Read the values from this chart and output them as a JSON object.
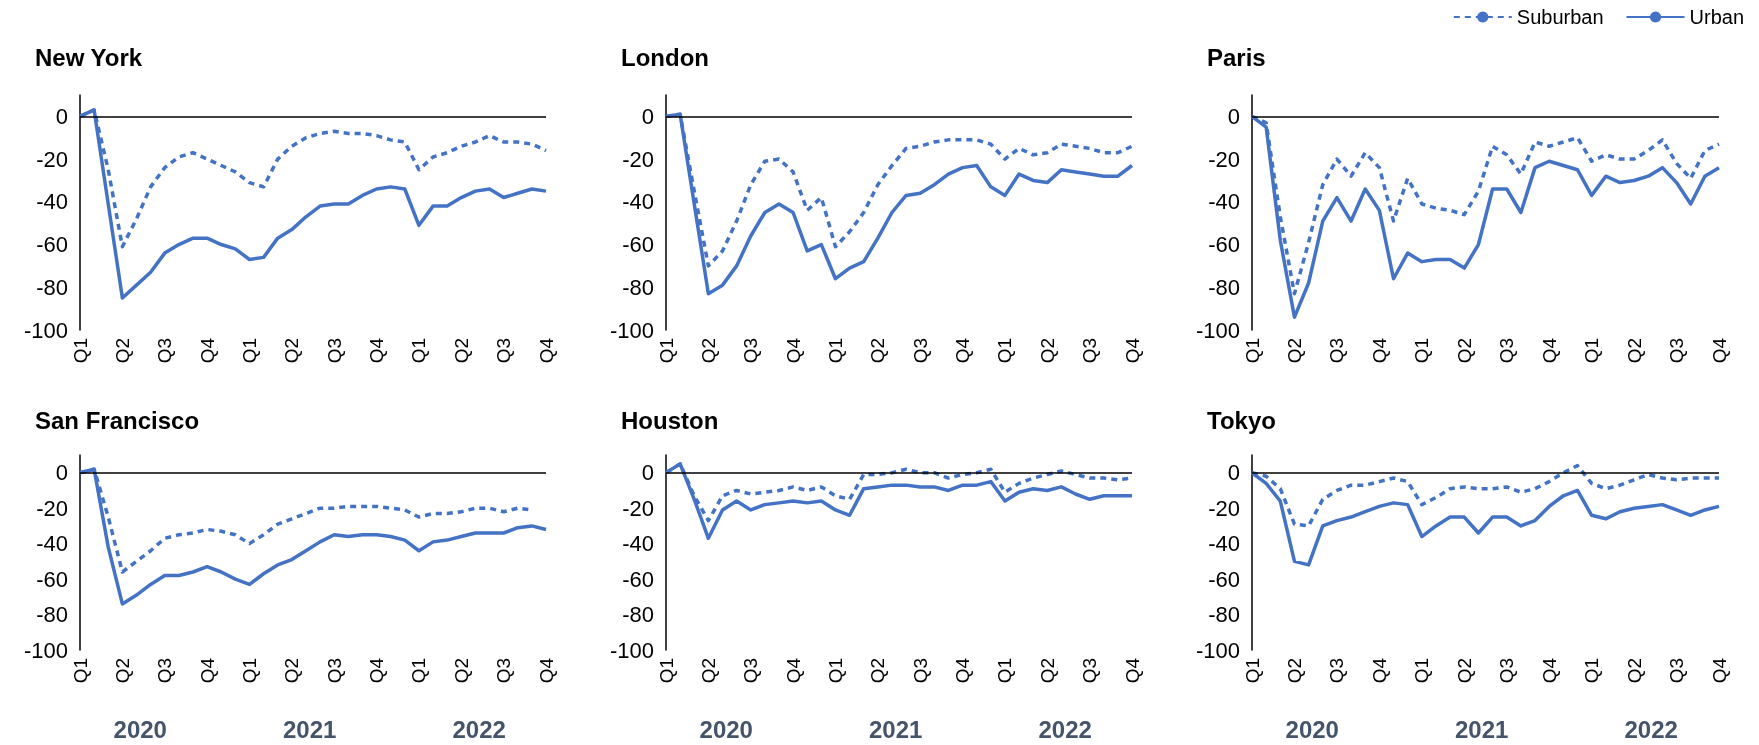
{
  "chart_data": [
    {
      "type": "line",
      "title": "New York",
      "ref_lines": [
        {
          "axis": "y",
          "value": 0,
          "color": "#000000"
        }
      ],
      "categories": [
        "Q1",
        null,
        null,
        "Q2",
        null,
        null,
        "Q3",
        null,
        null,
        "Q4",
        null,
        null,
        "Q1",
        null,
        null,
        "Q2",
        null,
        null,
        "Q3",
        null,
        null,
        "Q4",
        null,
        null,
        "Q1",
        null,
        null,
        "Q2",
        null,
        null,
        "Q3",
        null,
        null,
        "Q4"
      ],
      "ylim": [
        -100,
        10
      ],
      "yticks": [
        -100,
        -80,
        -60,
        -40,
        -20,
        0
      ],
      "grid": false,
      "legend": false,
      "marker": "none",
      "series": [
        {
          "color": "#4472c4",
          "line_style": "dashed",
          "values": [
            0,
            3,
            -25,
            -61,
            -48,
            -33,
            -24,
            -19,
            -17,
            -20,
            -23,
            -26,
            -31,
            -33,
            -20,
            -14,
            -10,
            -8,
            -7,
            -8,
            -8,
            -9,
            -11,
            -12,
            -25,
            -19,
            -17,
            -14,
            -12,
            -9,
            -12,
            -12,
            -13,
            -16
          ]
        },
        {
          "color": "#4472c4",
          "line_style": "solid",
          "values": [
            0,
            3,
            -41,
            -85,
            -79,
            -73,
            -64,
            -60,
            -57,
            -57,
            -60,
            -62,
            -67,
            -66,
            -57,
            -53,
            -47,
            -42,
            -41,
            -41,
            -37,
            -34,
            -33,
            -34,
            -51,
            -42,
            -42,
            -38,
            -35,
            -34,
            -38,
            -36,
            -34,
            -35
          ]
        }
      ]
    },
    {
      "type": "line",
      "title": "London",
      "ref_lines": [
        {
          "axis": "y",
          "value": 0,
          "color": "#000000"
        }
      ],
      "categories": [
        "Q1",
        null,
        null,
        "Q2",
        null,
        null,
        "Q3",
        null,
        null,
        "Q4",
        null,
        null,
        "Q1",
        null,
        null,
        "Q2",
        null,
        null,
        "Q3",
        null,
        null,
        "Q4",
        null,
        null,
        "Q1",
        null,
        null,
        "Q2",
        null,
        null,
        "Q3",
        null,
        null,
        "Q4"
      ],
      "ylim": [
        -100,
        10
      ],
      "yticks": [
        -100,
        -80,
        -60,
        -40,
        -20,
        0
      ],
      "grid": false,
      "legend": false,
      "marker": "none",
      "series": [
        {
          "color": "#4472c4",
          "line_style": "dashed",
          "values": [
            0,
            1,
            -35,
            -70,
            -63,
            -49,
            -32,
            -21,
            -20,
            -26,
            -44,
            -38,
            -61,
            -54,
            -45,
            -32,
            -23,
            -15,
            -14,
            -12,
            -11,
            -11,
            -11,
            -13,
            -20,
            -15,
            -18,
            -17,
            -13,
            -14,
            -15,
            -17,
            -17,
            -14
          ]
        },
        {
          "color": "#4472c4",
          "line_style": "solid",
          "values": [
            0,
            1,
            -41,
            -83,
            -79,
            -70,
            -56,
            -45,
            -41,
            -45,
            -63,
            -60,
            -76,
            -71,
            -68,
            -57,
            -45,
            -37,
            -36,
            -32,
            -27,
            -24,
            -23,
            -33,
            -37,
            -27,
            -30,
            -31,
            -25,
            -26,
            -27,
            -28,
            -28,
            -23
          ]
        }
      ]
    },
    {
      "type": "line",
      "title": "Paris",
      "ref_lines": [
        {
          "axis": "y",
          "value": 0,
          "color": "#000000"
        }
      ],
      "categories": [
        "Q1",
        null,
        null,
        "Q2",
        null,
        null,
        "Q3",
        null,
        null,
        "Q4",
        null,
        null,
        "Q1",
        null,
        null,
        "Q2",
        null,
        null,
        "Q3",
        null,
        null,
        "Q4",
        null,
        null,
        "Q1",
        null,
        null,
        "Q2",
        null,
        null,
        "Q3",
        null,
        null,
        "Q4"
      ],
      "ylim": [
        -100,
        10
      ],
      "yticks": [
        -100,
        -80,
        -60,
        -40,
        -20,
        0
      ],
      "grid": false,
      "legend": "top right",
      "marker": "none",
      "series": [
        {
          "name": "Suburban",
          "color": "#4472c4",
          "line_style": "dashed",
          "values": [
            0,
            -3,
            -47,
            -83,
            -59,
            -32,
            -20,
            -28,
            -17,
            -24,
            -49,
            -29,
            -41,
            -43,
            -44,
            -46,
            -35,
            -14,
            -18,
            -27,
            -12,
            -14,
            -12,
            -10,
            -21,
            -18,
            -20,
            -20,
            -16,
            -11,
            -22,
            -29,
            -16,
            -13
          ]
        },
        {
          "name": "Urban",
          "color": "#4472c4",
          "line_style": "solid",
          "values": [
            0,
            -5,
            -58,
            -94,
            -78,
            -49,
            -38,
            -49,
            -34,
            -44,
            -76,
            -64,
            -68,
            -67,
            -67,
            -71,
            -60,
            -34,
            -34,
            -45,
            -24,
            -21,
            -23,
            -25,
            -37,
            -28,
            -31,
            -30,
            -28,
            -24,
            -31,
            -41,
            -28,
            -24
          ]
        }
      ]
    },
    {
      "type": "line",
      "title": "San Francisco",
      "ref_lines": [
        {
          "axis": "y",
          "value": 0,
          "color": "#000000"
        }
      ],
      "categories": [
        "Q1",
        null,
        null,
        "Q2",
        null,
        null,
        "Q3",
        null,
        null,
        "Q4",
        null,
        null,
        "Q1",
        null,
        null,
        "Q2",
        null,
        null,
        "Q3",
        null,
        null,
        "Q4",
        null,
        null,
        "Q1",
        null,
        null,
        "Q2",
        null,
        null,
        "Q3",
        null,
        null,
        "Q4"
      ],
      "ylim": [
        -100,
        10
      ],
      "yticks": [
        -100,
        -80,
        -60,
        -40,
        -20,
        0
      ],
      "grid": false,
      "legend": false,
      "marker": "none",
      "annotations": [
        "2020",
        "2021",
        "2022"
      ],
      "series": [
        {
          "color": "#4472c4",
          "line_style": "dashed",
          "values": [
            0,
            2,
            -25,
            -56,
            -50,
            -44,
            -37,
            -35,
            -34,
            -32,
            -33,
            -35,
            -40,
            -35,
            -29,
            -26,
            -23,
            -20,
            -20,
            -19,
            -19,
            -19,
            -20,
            -21,
            -25,
            -23,
            -23,
            -22,
            -20,
            -20,
            -22,
            -20,
            -21,
            null
          ]
        },
        {
          "color": "#4472c4",
          "line_style": "solid",
          "values": [
            0,
            2,
            -42,
            -74,
            -69,
            -63,
            -58,
            -58,
            -56,
            -53,
            -56,
            -60,
            -63,
            -57,
            -52,
            -49,
            -44,
            -39,
            -35,
            -36,
            -35,
            -35,
            -36,
            -38,
            -44,
            -39,
            -38,
            -36,
            -34,
            -34,
            -34,
            -31,
            -30,
            -32
          ]
        }
      ]
    },
    {
      "type": "line",
      "title": "Houston",
      "ref_lines": [
        {
          "axis": "y",
          "value": 0,
          "color": "#000000"
        }
      ],
      "categories": [
        "Q1",
        null,
        null,
        "Q2",
        null,
        null,
        "Q3",
        null,
        null,
        "Q4",
        null,
        null,
        "Q1",
        null,
        null,
        "Q2",
        null,
        null,
        "Q3",
        null,
        null,
        "Q4",
        null,
        null,
        "Q1",
        null,
        null,
        "Q2",
        null,
        null,
        "Q3",
        null,
        null,
        "Q4"
      ],
      "ylim": [
        -100,
        10
      ],
      "yticks": [
        -100,
        -80,
        -60,
        -40,
        -20,
        0
      ],
      "grid": false,
      "legend": false,
      "marker": "none",
      "annotations": [
        "2020",
        "2021",
        "2022"
      ],
      "series": [
        {
          "color": "#4472c4",
          "line_style": "dashed",
          "values": [
            0,
            5,
            -13,
            -27,
            -13,
            -10,
            -12,
            -11,
            -10,
            -8,
            -10,
            -8,
            -13,
            -15,
            -1,
            -1,
            0,
            2,
            0,
            0,
            -3,
            -1,
            0,
            2,
            -11,
            -6,
            -3,
            -1,
            1,
            -1,
            -3,
            -3,
            -4,
            -3
          ]
        },
        {
          "color": "#4472c4",
          "line_style": "solid",
          "values": [
            0,
            5,
            -15,
            -37,
            -21,
            -16,
            -21,
            -18,
            -17,
            -16,
            -17,
            -16,
            -21,
            -24,
            -9,
            -8,
            -7,
            -7,
            -8,
            -8,
            -10,
            -7,
            -7,
            -5,
            -16,
            -11,
            -9,
            -10,
            -8,
            -12,
            -15,
            -13,
            -13,
            -13
          ]
        }
      ]
    },
    {
      "type": "line",
      "title": "Tokyo",
      "ref_lines": [
        {
          "axis": "y",
          "value": 0,
          "color": "#000000"
        }
      ],
      "categories": [
        "Q1",
        null,
        null,
        "Q2",
        null,
        null,
        "Q3",
        null,
        null,
        "Q4",
        null,
        null,
        "Q1",
        null,
        null,
        "Q2",
        null,
        null,
        "Q3",
        null,
        null,
        "Q4",
        null,
        null,
        "Q1",
        null,
        null,
        "Q2",
        null,
        null,
        "Q3",
        null,
        null,
        "Q4"
      ],
      "ylim": [
        -100,
        10
      ],
      "yticks": [
        -100,
        -80,
        -60,
        -40,
        -20,
        0
      ],
      "grid": false,
      "legend": false,
      "marker": "none",
      "annotations": [
        "2020",
        "2021",
        "2022"
      ],
      "series": [
        {
          "color": "#4472c4",
          "line_style": "dashed",
          "values": [
            0,
            -2,
            -9,
            -29,
            -30,
            -15,
            -10,
            -7,
            -7,
            -5,
            -3,
            -5,
            -18,
            -14,
            -9,
            -8,
            -9,
            -9,
            -8,
            -11,
            -9,
            -5,
            0,
            4,
            -6,
            -9,
            -7,
            -4,
            -1,
            -3,
            -4,
            -3,
            -3,
            -3
          ]
        },
        {
          "color": "#4472c4",
          "line_style": "solid",
          "values": [
            0,
            -6,
            -16,
            -50,
            -52,
            -30,
            -27,
            -25,
            -22,
            -19,
            -17,
            -18,
            -36,
            -30,
            -25,
            -25,
            -34,
            -25,
            -25,
            -30,
            -27,
            -19,
            -13,
            -10,
            -24,
            -26,
            -22,
            -20,
            -19,
            -18,
            -21,
            -24,
            -21,
            -19
          ]
        }
      ]
    }
  ]
}
